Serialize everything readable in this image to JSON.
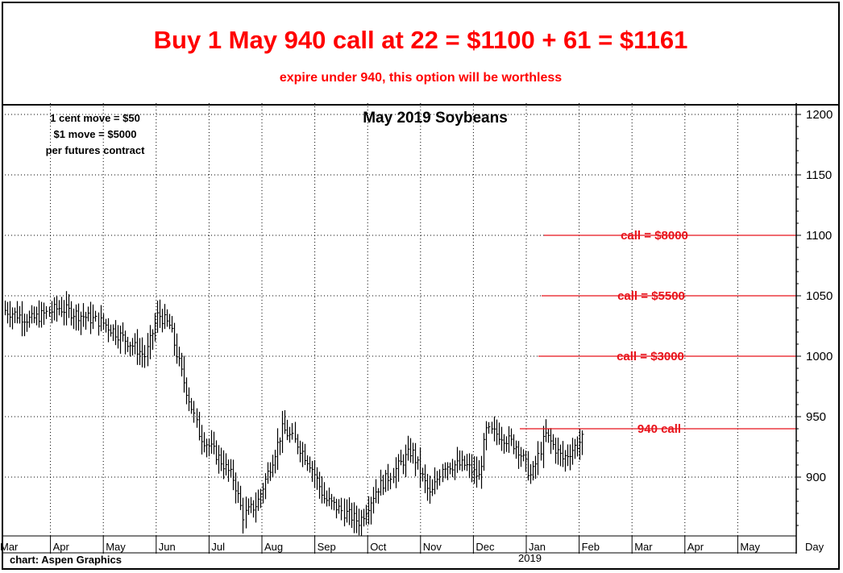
{
  "header": {
    "headline": "Buy 1 May 940 call at 22 = $1100 + 61 = $1161",
    "subline": "expire under 940, this option will be worthless"
  },
  "chart_data": {
    "type": "ohlc",
    "title": "May 2019 Soybeans",
    "notes": [
      "1 cent move = $50",
      "$1 move = $5000",
      "per futures contract"
    ],
    "credit": "chart: Aspen Graphics",
    "x_axis_label": "Day",
    "x_tick_labels": [
      "Mar",
      "Apr",
      "May",
      "Jun",
      "Jul",
      "Aug",
      "Sep",
      "Oct",
      "Nov",
      "Dec",
      "Jan",
      "Feb",
      "Mar",
      "Apr",
      "May"
    ],
    "year_label": "2019",
    "y_ticks": [
      900,
      950,
      1000,
      1050,
      1100,
      1150,
      1200
    ],
    "ylim": [
      852,
      1208
    ],
    "grid": true,
    "reference_lines": [
      {
        "value": 1100,
        "label": "call = $8000"
      },
      {
        "value": 1050,
        "label": "call = $5500"
      },
      {
        "value": 1000,
        "label": "call = $3000"
      },
      {
        "value": 940,
        "label": "940 call"
      }
    ],
    "price_path": [
      {
        "date": "2018-03-05",
        "price": 1038
      },
      {
        "date": "2018-03-20",
        "price": 1030
      },
      {
        "date": "2018-04-05",
        "price": 1040
      },
      {
        "date": "2018-04-15",
        "price": 1035
      },
      {
        "date": "2018-04-30",
        "price": 1028
      },
      {
        "date": "2018-05-15",
        "price": 1012
      },
      {
        "date": "2018-05-25",
        "price": 1000
      },
      {
        "date": "2018-06-01",
        "price": 1035
      },
      {
        "date": "2018-06-08",
        "price": 1025
      },
      {
        "date": "2018-06-15",
        "price": 985
      },
      {
        "date": "2018-06-25",
        "price": 935
      },
      {
        "date": "2018-07-05",
        "price": 918
      },
      {
        "date": "2018-07-15",
        "price": 898
      },
      {
        "date": "2018-07-20",
        "price": 868
      },
      {
        "date": "2018-07-28",
        "price": 878
      },
      {
        "date": "2018-08-05",
        "price": 910
      },
      {
        "date": "2018-08-12",
        "price": 940
      },
      {
        "date": "2018-08-20",
        "price": 928
      },
      {
        "date": "2018-08-28",
        "price": 910
      },
      {
        "date": "2018-09-05",
        "price": 882
      },
      {
        "date": "2018-09-15",
        "price": 872
      },
      {
        "date": "2018-09-25",
        "price": 863
      },
      {
        "date": "2018-10-05",
        "price": 890
      },
      {
        "date": "2018-10-15",
        "price": 905
      },
      {
        "date": "2018-10-25",
        "price": 922
      },
      {
        "date": "2018-11-05",
        "price": 884
      },
      {
        "date": "2018-11-12",
        "price": 910
      },
      {
        "date": "2018-11-25",
        "price": 910
      },
      {
        "date": "2018-12-03",
        "price": 900
      },
      {
        "date": "2018-12-07",
        "price": 938
      },
      {
        "date": "2018-12-15",
        "price": 935
      },
      {
        "date": "2018-12-25",
        "price": 925
      },
      {
        "date": "2019-01-02",
        "price": 900
      },
      {
        "date": "2019-01-10",
        "price": 935
      },
      {
        "date": "2019-01-20",
        "price": 915
      },
      {
        "date": "2019-02-01",
        "price": 932
      }
    ]
  }
}
